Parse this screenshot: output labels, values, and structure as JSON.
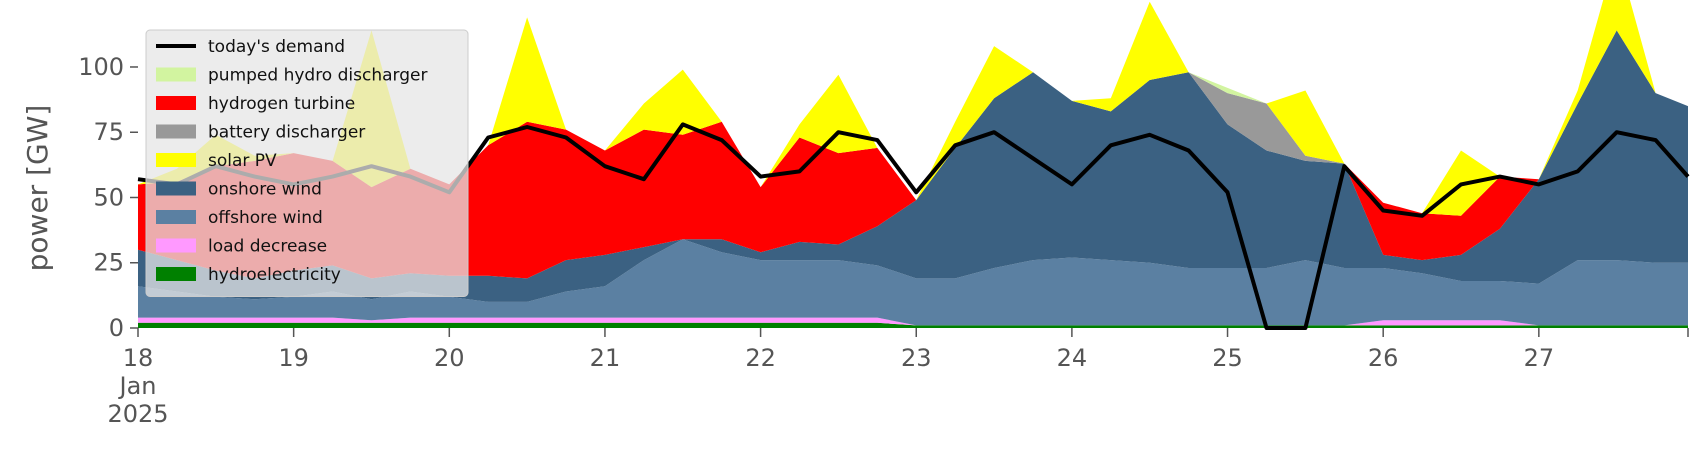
{
  "chart_data": {
    "type": "area",
    "ylabel": "power [GW]",
    "xlabel": "",
    "ylim": [
      0,
      118
    ],
    "xlim": [
      "2025-01-18 00:00",
      "2025-01-27 23:00"
    ],
    "grid": false,
    "legend_position": "top-left",
    "y_ticks": [
      0,
      25,
      50,
      75,
      100
    ],
    "x_ticks": [
      {
        "value": "2025-01-18",
        "label": "18",
        "sub1": "Jan",
        "sub2": "2025"
      },
      {
        "value": "2025-01-19",
        "label": "19"
      },
      {
        "value": "2025-01-20",
        "label": "20"
      },
      {
        "value": "2025-01-21",
        "label": "21"
      },
      {
        "value": "2025-01-22",
        "label": "22"
      },
      {
        "value": "2025-01-23",
        "label": "23"
      },
      {
        "value": "2025-01-24",
        "label": "24"
      },
      {
        "value": "2025-01-25",
        "label": "25"
      },
      {
        "value": "2025-01-26",
        "label": "26"
      },
      {
        "value": "2025-01-27",
        "label": "27"
      }
    ],
    "x": [
      "2025-01-18 00:00",
      "2025-01-18 06:00",
      "2025-01-18 12:00",
      "2025-01-18 18:00",
      "2025-01-19 00:00",
      "2025-01-19 06:00",
      "2025-01-19 12:00",
      "2025-01-19 18:00",
      "2025-01-20 00:00",
      "2025-01-20 06:00",
      "2025-01-20 12:00",
      "2025-01-20 18:00",
      "2025-01-21 00:00",
      "2025-01-21 06:00",
      "2025-01-21 12:00",
      "2025-01-21 18:00",
      "2025-01-22 00:00",
      "2025-01-22 06:00",
      "2025-01-22 12:00",
      "2025-01-22 18:00",
      "2025-01-23 00:00",
      "2025-01-23 06:00",
      "2025-01-23 12:00",
      "2025-01-23 18:00",
      "2025-01-24 00:00",
      "2025-01-24 06:00",
      "2025-01-24 12:00",
      "2025-01-24 18:00",
      "2025-01-25 00:00",
      "2025-01-25 06:00",
      "2025-01-25 12:00",
      "2025-01-25 18:00",
      "2025-01-26 00:00",
      "2025-01-26 06:00",
      "2025-01-26 12:00",
      "2025-01-26 18:00",
      "2025-01-27 00:00",
      "2025-01-27 06:00",
      "2025-01-27 12:00",
      "2025-01-27 18:00",
      "2025-01-27 23:00"
    ],
    "series": [
      {
        "name": "hydroelectricity",
        "color": "#008000",
        "values": [
          2,
          2,
          2,
          2,
          2,
          2,
          2,
          2,
          2,
          2,
          2,
          2,
          2,
          2,
          2,
          2,
          2,
          2,
          2,
          2,
          1,
          1,
          1,
          1,
          1,
          1,
          1,
          1,
          1,
          1,
          1,
          1,
          1,
          1,
          1,
          1,
          1,
          1,
          1,
          1,
          1
        ]
      },
      {
        "name": "load decrease",
        "color": "#ff99ff",
        "values": [
          2,
          2,
          2,
          2,
          2,
          2,
          1,
          2,
          2,
          2,
          2,
          2,
          2,
          2,
          2,
          2,
          2,
          2,
          2,
          2,
          0,
          0,
          0,
          0,
          0,
          0,
          0,
          0,
          0,
          0,
          0,
          0,
          2,
          2,
          2,
          2,
          0,
          0,
          0,
          0,
          0
        ]
      },
      {
        "name": "offshore wind",
        "color": "#5b80a2",
        "values": [
          12,
          10,
          8,
          7,
          8,
          10,
          8,
          10,
          8,
          6,
          6,
          10,
          12,
          22,
          30,
          25,
          22,
          22,
          22,
          20,
          18,
          18,
          22,
          25,
          26,
          25,
          24,
          22,
          22,
          22,
          25,
          22,
          20,
          18,
          15,
          15,
          16,
          25,
          25,
          24,
          24
        ]
      },
      {
        "name": "onshore wind",
        "color": "#3b6182",
        "values": [
          14,
          12,
          10,
          8,
          10,
          10,
          8,
          7,
          8,
          10,
          9,
          12,
          12,
          5,
          0,
          5,
          3,
          7,
          6,
          15,
          30,
          50,
          65,
          72,
          60,
          57,
          70,
          75,
          55,
          45,
          38,
          40,
          5,
          5,
          10,
          20,
          40,
          60,
          88,
          65,
          60
        ]
      },
      {
        "name": "battery discharger",
        "color": "#999999",
        "values": [
          0,
          0,
          0,
          0,
          0,
          0,
          0,
          0,
          0,
          0,
          0,
          0,
          0,
          0,
          0,
          0,
          0,
          0,
          0,
          0,
          0,
          0,
          0,
          0,
          0,
          0,
          0,
          0,
          12,
          18,
          2,
          0,
          0,
          0,
          0,
          0,
          0,
          0,
          0,
          0,
          0
        ]
      },
      {
        "name": "hydrogen turbine",
        "color": "#ff0000",
        "values": [
          25,
          30,
          40,
          45,
          45,
          40,
          35,
          40,
          35,
          50,
          60,
          50,
          40,
          45,
          40,
          45,
          25,
          40,
          35,
          30,
          0,
          0,
          0,
          0,
          0,
          0,
          0,
          0,
          0,
          0,
          0,
          0,
          20,
          18,
          15,
          20,
          0,
          0,
          0,
          0,
          0
        ]
      },
      {
        "name": "solar PV",
        "color": "#ffff00",
        "values": [
          0,
          5,
          12,
          2,
          0,
          0,
          60,
          0,
          0,
          0,
          40,
          0,
          0,
          10,
          25,
          0,
          0,
          5,
          30,
          0,
          0,
          10,
          20,
          0,
          0,
          5,
          30,
          0,
          0,
          0,
          25,
          0,
          0,
          0,
          25,
          0,
          0,
          5,
          30,
          0,
          0
        ]
      },
      {
        "name": "pumped hydro discharger",
        "color": "#d2f4a0",
        "values": [
          0,
          0,
          0,
          0,
          0,
          0,
          0,
          0,
          0,
          0,
          0,
          0,
          0,
          0,
          0,
          0,
          0,
          0,
          0,
          0,
          0,
          0,
          0,
          0,
          0,
          0,
          0,
          0,
          2,
          0,
          0,
          0,
          0,
          0,
          0,
          0,
          0,
          0,
          0,
          0,
          0
        ]
      }
    ],
    "demand": {
      "name": "today's demand",
      "color": "#000000",
      "values": [
        57,
        55,
        62,
        58,
        55,
        58,
        62,
        58,
        52,
        73,
        77,
        73,
        62,
        57,
        78,
        72,
        58,
        60,
        75,
        72,
        52,
        70,
        75,
        65,
        55,
        70,
        74,
        68,
        52,
        0,
        0,
        62,
        45,
        43,
        55,
        58,
        55,
        60,
        75,
        72,
        58
      ]
    },
    "legend": [
      "today's demand",
      "pumped hydro discharger",
      "hydrogen turbine",
      "battery discharger",
      "solar PV",
      "onshore wind",
      "offshore wind",
      "load decrease",
      "hydroelectricity"
    ]
  }
}
